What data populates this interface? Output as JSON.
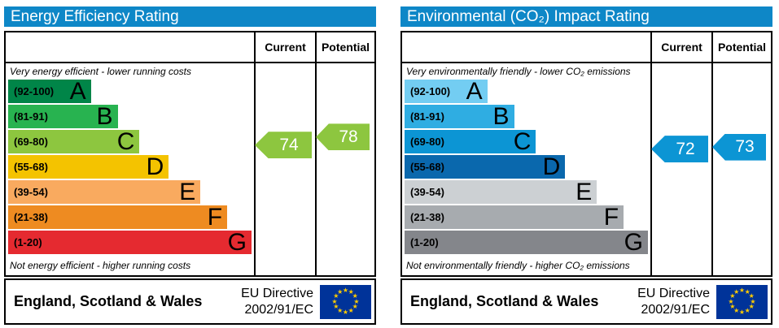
{
  "colors": {
    "header_bg": "#0e87c7",
    "header_text": "#ffffff",
    "border": "#000000",
    "eu_flag_bg": "#003399",
    "eu_star": "#ffcc00"
  },
  "icons": {
    "eu_flag": "eu-flag",
    "star_glyph": "★"
  },
  "chart_data": [
    {
      "type": "bar",
      "title": "Energy Efficiency Rating",
      "columns": {
        "current_label": "Current",
        "potential_label": "Potential"
      },
      "top_caption": "Very energy efficient - lower running costs",
      "bottom_caption": "Not energy efficient - higher running costs",
      "bands": [
        {
          "letter": "A",
          "range_label": "(92-100)",
          "min": 92,
          "max": 100,
          "color": "#008548",
          "width_pct": 34
        },
        {
          "letter": "B",
          "range_label": "(81-91)",
          "min": 81,
          "max": 91,
          "color": "#28b350",
          "width_pct": 45
        },
        {
          "letter": "C",
          "range_label": "(69-80)",
          "min": 69,
          "max": 80,
          "color": "#8dc63f",
          "width_pct": 54
        },
        {
          "letter": "D",
          "range_label": "(55-68)",
          "min": 55,
          "max": 68,
          "color": "#f4c300",
          "width_pct": 66
        },
        {
          "letter": "E",
          "range_label": "(39-54)",
          "min": 39,
          "max": 54,
          "color": "#f9aa5f",
          "width_pct": 79
        },
        {
          "letter": "F",
          "range_label": "(21-38)",
          "min": 21,
          "max": 38,
          "color": "#ee8b21",
          "width_pct": 90
        },
        {
          "letter": "G",
          "range_label": "(1-20)",
          "min": 1,
          "max": 20,
          "color": "#e52a30",
          "width_pct": 100
        }
      ],
      "current": {
        "value": 74,
        "band": "C",
        "color": "#8dc63f"
      },
      "potential": {
        "value": 78,
        "band": "C",
        "color": "#8dc63f"
      },
      "footer": {
        "region": "England, Scotland & Wales",
        "directive_line1": "EU Directive",
        "directive_line2": "2002/91/EC"
      }
    },
    {
      "type": "bar",
      "title": "Environmental (CO₂) Impact Rating",
      "columns": {
        "current_label": "Current",
        "potential_label": "Potential"
      },
      "top_caption": "Very environmentally friendly - lower CO₂ emissions",
      "bottom_caption": "Not environmentally friendly - higher CO₂ emissions",
      "bands": [
        {
          "letter": "A",
          "range_label": "(92-100)",
          "min": 92,
          "max": 100,
          "color": "#73cdf2",
          "width_pct": 34
        },
        {
          "letter": "B",
          "range_label": "(81-91)",
          "min": 81,
          "max": 91,
          "color": "#2fade2",
          "width_pct": 45
        },
        {
          "letter": "C",
          "range_label": "(69-80)",
          "min": 69,
          "max": 80,
          "color": "#0c95d4",
          "width_pct": 54
        },
        {
          "letter": "D",
          "range_label": "(55-68)",
          "min": 55,
          "max": 68,
          "color": "#0a68ad",
          "width_pct": 66
        },
        {
          "letter": "E",
          "range_label": "(39-54)",
          "min": 39,
          "max": 54,
          "color": "#ccd0d3",
          "width_pct": 79
        },
        {
          "letter": "F",
          "range_label": "(21-38)",
          "min": 21,
          "max": 38,
          "color": "#a7abaf",
          "width_pct": 90
        },
        {
          "letter": "G",
          "range_label": "(1-20)",
          "min": 1,
          "max": 20,
          "color": "#84868b",
          "width_pct": 100
        }
      ],
      "current": {
        "value": 72,
        "band": "C",
        "color": "#0c95d4"
      },
      "potential": {
        "value": 73,
        "band": "C",
        "color": "#0c95d4"
      },
      "footer": {
        "region": "England, Scotland & Wales",
        "directive_line1": "EU Directive",
        "directive_line2": "2002/91/EC"
      }
    }
  ]
}
